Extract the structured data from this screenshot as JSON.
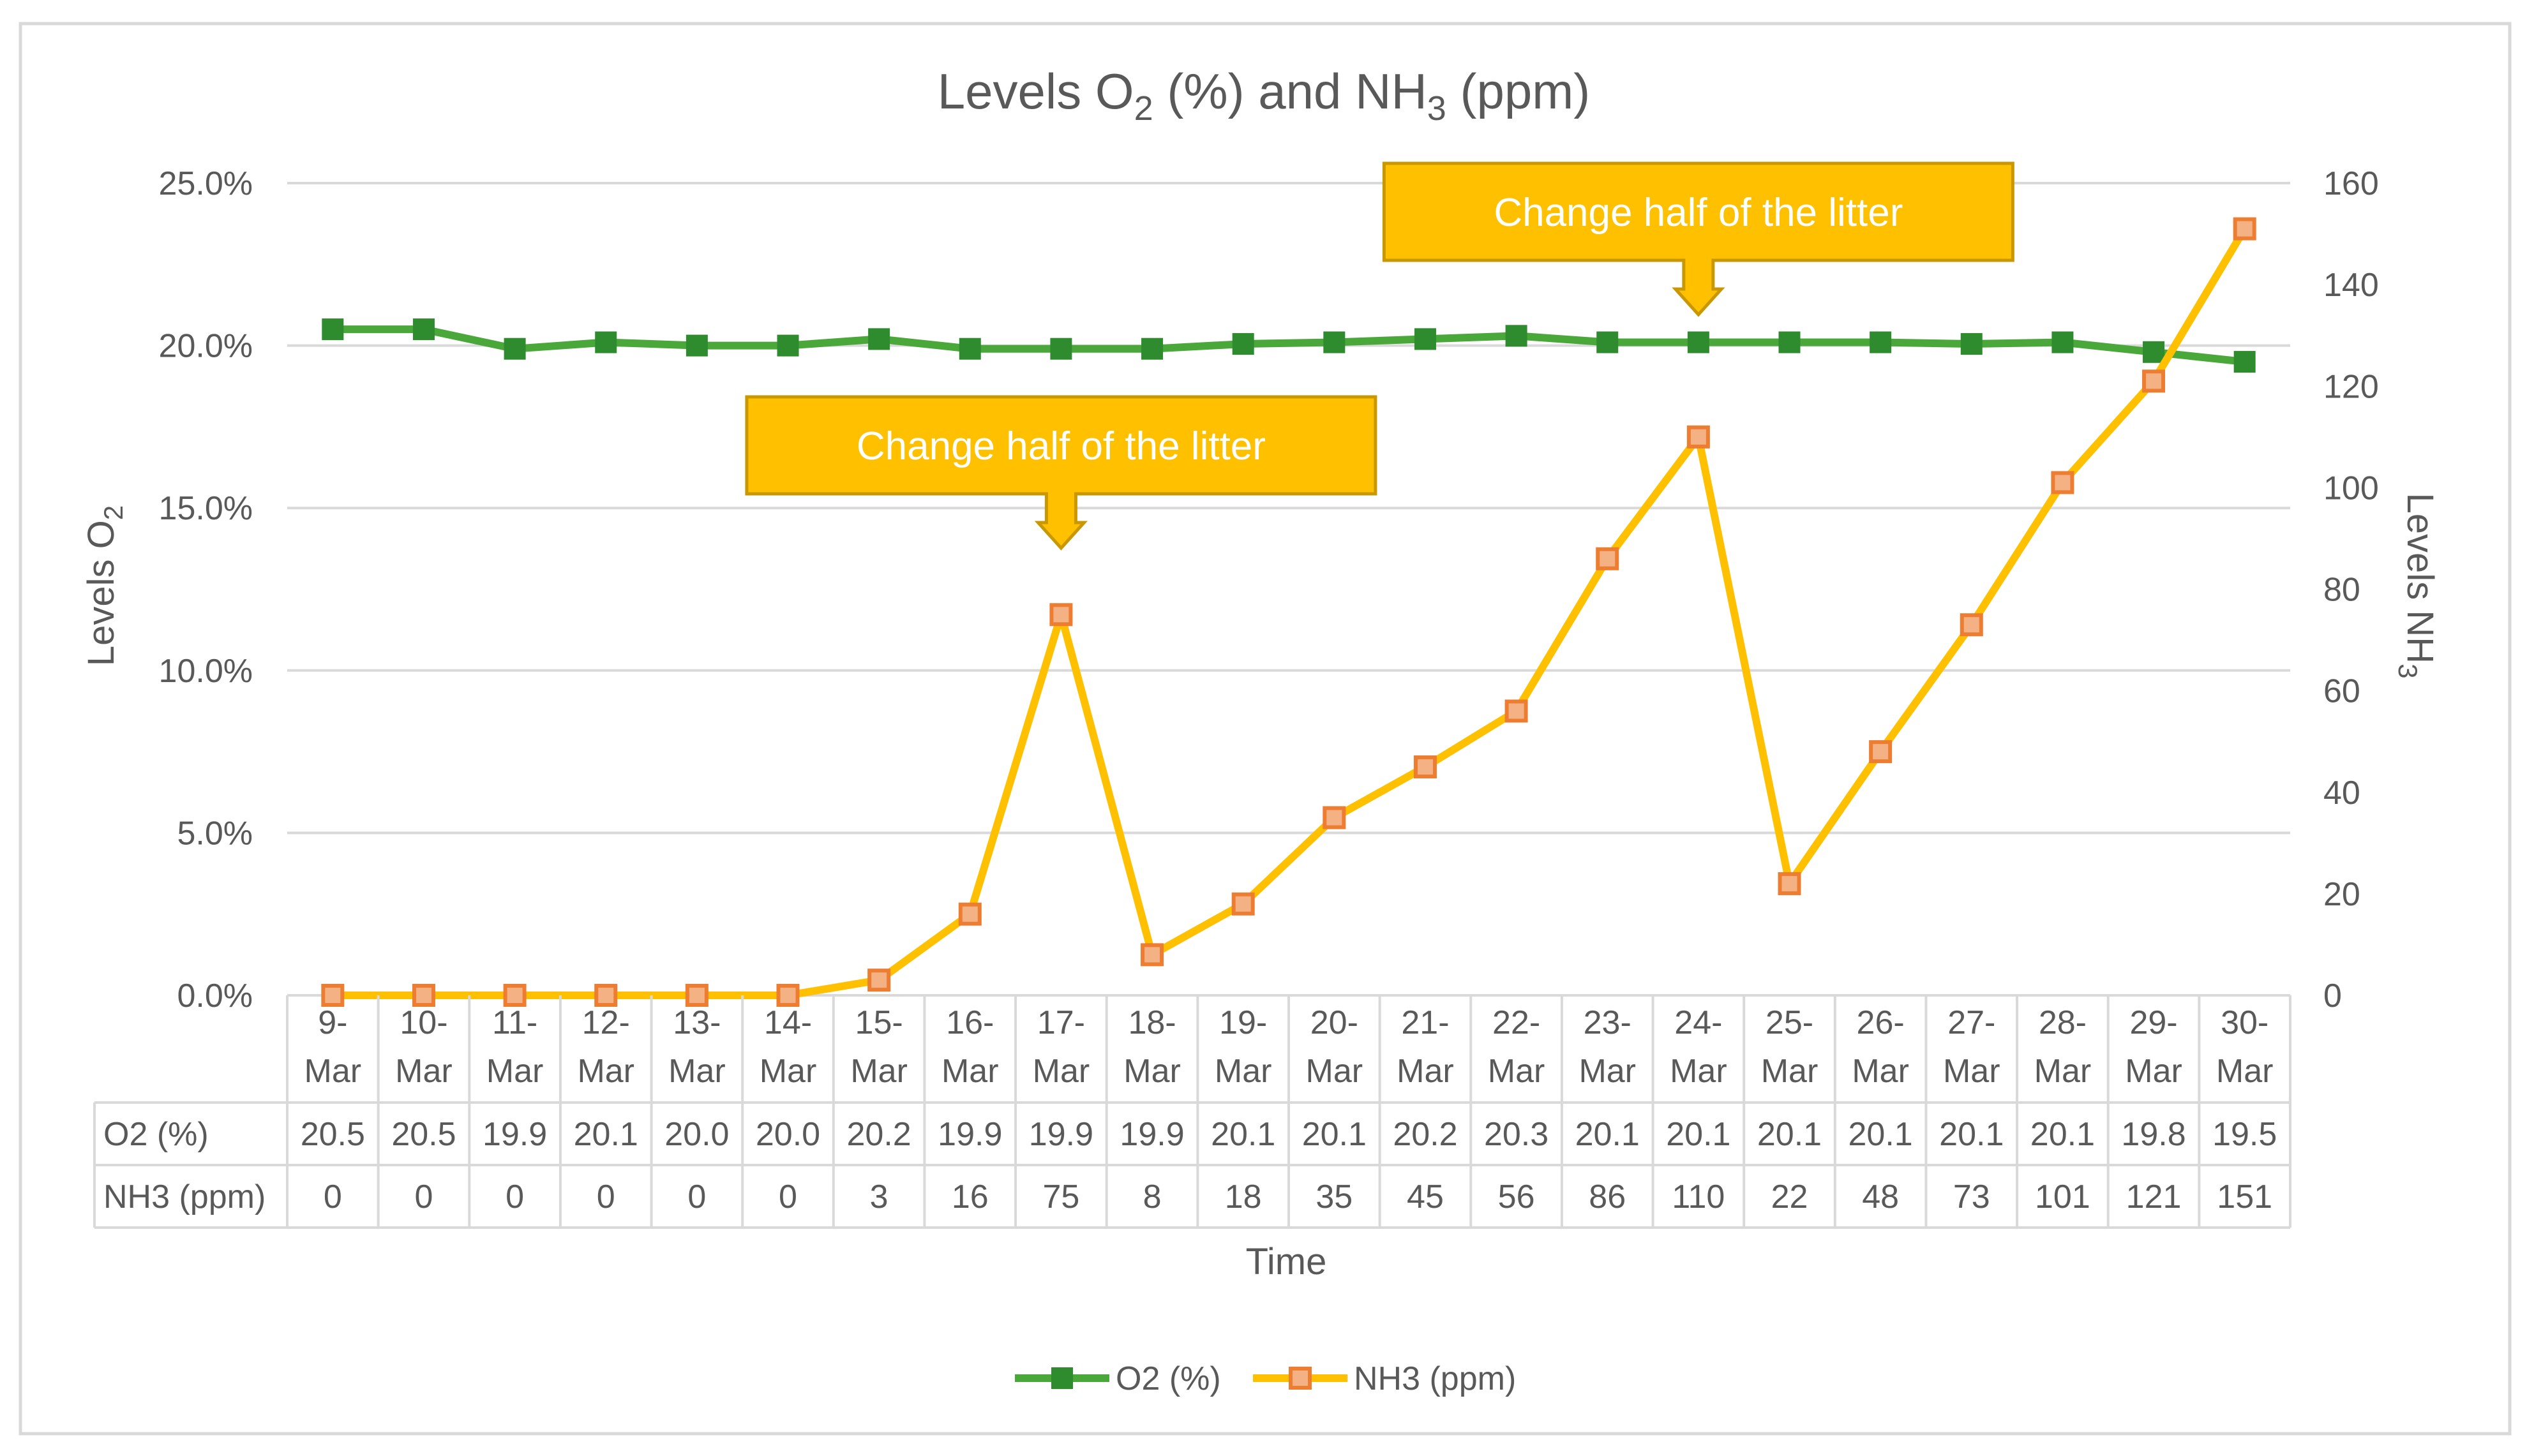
{
  "chart_data": {
    "type": "line",
    "title_parts": {
      "a": "Levels O",
      "a_sub": "2",
      "b": " (%) and NH",
      "b_sub": "3",
      "c": " (ppm)"
    },
    "x_title": "Time",
    "y_left_title": {
      "text": "Levels O",
      "sub": "2"
    },
    "y_right_title": {
      "text": "Levels NH",
      "sub": "3"
    },
    "categories": [
      [
        "9-",
        "Mar"
      ],
      [
        "10-",
        "Mar"
      ],
      [
        "11-",
        "Mar"
      ],
      [
        "12-",
        "Mar"
      ],
      [
        "13-",
        "Mar"
      ],
      [
        "14-",
        "Mar"
      ],
      [
        "15-",
        "Mar"
      ],
      [
        "16-",
        "Mar"
      ],
      [
        "17-",
        "Mar"
      ],
      [
        "18-",
        "Mar"
      ],
      [
        "19-",
        "Mar"
      ],
      [
        "20-",
        "Mar"
      ],
      [
        "21-",
        "Mar"
      ],
      [
        "22-",
        "Mar"
      ],
      [
        "23-",
        "Mar"
      ],
      [
        "24-",
        "Mar"
      ],
      [
        "25-",
        "Mar"
      ],
      [
        "26-",
        "Mar"
      ],
      [
        "27-",
        "Mar"
      ],
      [
        "28-",
        "Mar"
      ],
      [
        "29-",
        "Mar"
      ],
      [
        "30-",
        "Mar"
      ]
    ],
    "y_left": {
      "min": 0,
      "max": 25,
      "step": 5,
      "tick_labels": [
        "0.0%",
        "5.0%",
        "10.0%",
        "15.0%",
        "20.0%",
        "25.0%"
      ]
    },
    "y_right": {
      "min": 0,
      "max": 160,
      "step": 20,
      "tick_labels": [
        "0",
        "20",
        "40",
        "60",
        "80",
        "100",
        "120",
        "140",
        "160"
      ]
    },
    "gridlines": true,
    "legend_position": "bottom",
    "series": [
      {
        "name": "O2 (%)",
        "axis": "left",
        "color": "#4aa83a",
        "marker_color": "#2e8b2e",
        "values": [
          20.5,
          20.5,
          19.9,
          20.1,
          20.0,
          20.0,
          20.2,
          19.9,
          19.9,
          19.9,
          20.05,
          20.1,
          20.2,
          20.3,
          20.1,
          20.1,
          20.1,
          20.1,
          20.05,
          20.1,
          19.8,
          19.5
        ],
        "table_labels": [
          "20.5",
          "20.5",
          "19.9",
          "20.1",
          "20.0",
          "20.0",
          "20.2",
          "19.9",
          "19.9",
          "19.9",
          "20.1",
          "20.1",
          "20.2",
          "20.3",
          "20.1",
          "20.1",
          "20.1",
          "20.1",
          "20.1",
          "20.1",
          "19.8",
          "19.5"
        ]
      },
      {
        "name": "NH3 (ppm)",
        "axis": "right",
        "color": "#ffc000",
        "marker_color": "#f4b183",
        "marker_edge": "#ed7d31",
        "values": [
          0,
          0,
          0,
          0,
          0,
          0,
          3,
          16,
          75,
          8,
          18,
          35,
          45,
          56,
          86,
          110,
          22,
          48,
          73,
          101,
          121,
          151
        ],
        "table_labels": [
          "0",
          "0",
          "0",
          "0",
          "0",
          "0",
          "3",
          "16",
          "75",
          "8",
          "18",
          "35",
          "45",
          "56",
          "86",
          "110",
          "22",
          "48",
          "73",
          "101",
          "121",
          "151"
        ]
      }
    ],
    "annotations": [
      {
        "text": "Change half of the litter",
        "category_index": 8,
        "color": "#ffc000",
        "edge": "#c99700"
      },
      {
        "text": "Change half of the litter",
        "category_index": 15,
        "color": "#ffc000",
        "edge": "#c99700"
      }
    ]
  }
}
